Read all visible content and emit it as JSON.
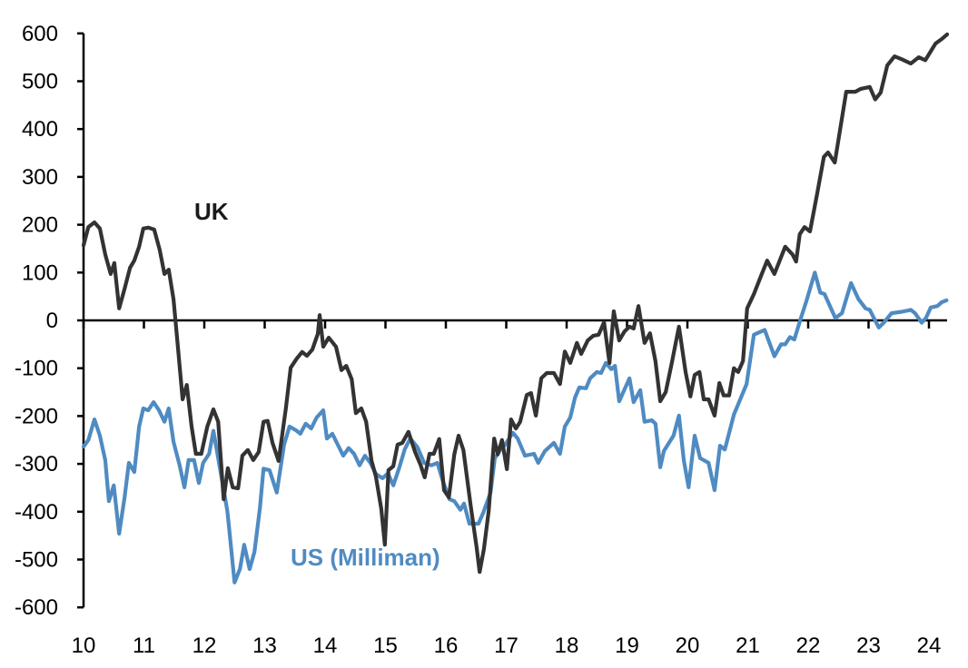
{
  "chart_data": {
    "type": "line",
    "title": "",
    "xlabel": "",
    "ylabel": "",
    "xlim": [
      10,
      24.3
    ],
    "ylim": [
      -600,
      600
    ],
    "grid": false,
    "legend": "inline labels",
    "x_ticks": [
      "10",
      "11",
      "12",
      "13",
      "14",
      "15",
      "16",
      "17",
      "18",
      "19",
      "20",
      "21",
      "22",
      "23",
      "24"
    ],
    "y_ticks": [
      "600",
      "500",
      "400",
      "300",
      "200",
      "100",
      "0",
      "-100",
      "-200",
      "-300",
      "-400",
      "-500",
      "-600"
    ],
    "zero_line": true,
    "series": [
      {
        "name": "UK",
        "color": "#333333",
        "points": [
          [
            10.0,
            157
          ],
          [
            10.08,
            195
          ],
          [
            10.18,
            205
          ],
          [
            10.27,
            192
          ],
          [
            10.36,
            138
          ],
          [
            10.45,
            97
          ],
          [
            10.51,
            120
          ],
          [
            10.59,
            25
          ],
          [
            10.68,
            66
          ],
          [
            10.77,
            110
          ],
          [
            10.84,
            125
          ],
          [
            10.92,
            154
          ],
          [
            10.99,
            192
          ],
          [
            11.07,
            194
          ],
          [
            11.17,
            190
          ],
          [
            11.26,
            148
          ],
          [
            11.34,
            97
          ],
          [
            11.41,
            106
          ],
          [
            11.49,
            44
          ],
          [
            11.56,
            -51
          ],
          [
            11.64,
            -165
          ],
          [
            11.71,
            -135
          ],
          [
            11.79,
            -222
          ],
          [
            11.86,
            -279
          ],
          [
            11.95,
            -279
          ],
          [
            12.05,
            -222
          ],
          [
            12.15,
            -186
          ],
          [
            12.23,
            -212
          ],
          [
            12.32,
            -374
          ],
          [
            12.39,
            -309
          ],
          [
            12.47,
            -349
          ],
          [
            12.56,
            -351
          ],
          [
            12.63,
            -283
          ],
          [
            12.72,
            -271
          ],
          [
            12.81,
            -292
          ],
          [
            12.9,
            -275
          ],
          [
            12.98,
            -212
          ],
          [
            13.05,
            -210
          ],
          [
            13.13,
            -256
          ],
          [
            13.23,
            -294
          ],
          [
            13.35,
            -184
          ],
          [
            13.43,
            -99
          ],
          [
            13.53,
            -80
          ],
          [
            13.62,
            -66
          ],
          [
            13.7,
            -74
          ],
          [
            13.79,
            -61
          ],
          [
            13.88,
            -28
          ],
          [
            13.91,
            11
          ],
          [
            13.97,
            -55
          ],
          [
            14.06,
            -36
          ],
          [
            14.18,
            -55
          ],
          [
            14.27,
            -104
          ],
          [
            14.35,
            -95
          ],
          [
            14.44,
            -123
          ],
          [
            14.51,
            -194
          ],
          [
            14.6,
            -184
          ],
          [
            14.68,
            -212
          ],
          [
            14.77,
            -294
          ],
          [
            14.84,
            -326
          ],
          [
            14.93,
            -393
          ],
          [
            14.99,
            -469
          ],
          [
            15.05,
            -313
          ],
          [
            15.13,
            -305
          ],
          [
            15.2,
            -260
          ],
          [
            15.28,
            -256
          ],
          [
            15.38,
            -233
          ],
          [
            15.49,
            -275
          ],
          [
            15.58,
            -302
          ],
          [
            15.65,
            -328
          ],
          [
            15.73,
            -279
          ],
          [
            15.8,
            -279
          ],
          [
            15.89,
            -248
          ],
          [
            15.97,
            -355
          ],
          [
            16.05,
            -370
          ],
          [
            16.14,
            -280
          ],
          [
            16.21,
            -241
          ],
          [
            16.29,
            -271
          ],
          [
            16.41,
            -387
          ],
          [
            16.51,
            -475
          ],
          [
            16.56,
            -526
          ],
          [
            16.63,
            -478
          ],
          [
            16.71,
            -398
          ],
          [
            16.8,
            -247
          ],
          [
            16.86,
            -280
          ],
          [
            16.93,
            -250
          ],
          [
            17.01,
            -311
          ],
          [
            17.08,
            -207
          ],
          [
            17.16,
            -226
          ],
          [
            17.23,
            -212
          ],
          [
            17.34,
            -156
          ],
          [
            17.41,
            -152
          ],
          [
            17.49,
            -199
          ],
          [
            17.58,
            -121
          ],
          [
            17.67,
            -110
          ],
          [
            17.79,
            -110
          ],
          [
            17.89,
            -133
          ],
          [
            17.97,
            -65
          ],
          [
            18.06,
            -89
          ],
          [
            18.17,
            -47
          ],
          [
            18.24,
            -70
          ],
          [
            18.35,
            -42
          ],
          [
            18.44,
            -32
          ],
          [
            18.53,
            -30
          ],
          [
            18.62,
            -4
          ],
          [
            18.71,
            -89
          ],
          [
            18.78,
            19
          ],
          [
            18.87,
            -42
          ],
          [
            18.96,
            -23
          ],
          [
            19.04,
            -13
          ],
          [
            19.11,
            -17
          ],
          [
            19.19,
            30
          ],
          [
            19.29,
            -47
          ],
          [
            19.38,
            -27
          ],
          [
            19.47,
            -85
          ],
          [
            19.55,
            -169
          ],
          [
            19.64,
            -150
          ],
          [
            19.74,
            -90
          ],
          [
            19.86,
            -13
          ],
          [
            19.97,
            -108
          ],
          [
            20.05,
            -159
          ],
          [
            20.12,
            -114
          ],
          [
            20.2,
            -108
          ],
          [
            20.27,
            -165
          ],
          [
            20.35,
            -165
          ],
          [
            20.45,
            -199
          ],
          [
            20.53,
            -131
          ],
          [
            20.6,
            -157
          ],
          [
            20.69,
            -157
          ],
          [
            20.77,
            -100
          ],
          [
            20.84,
            -108
          ],
          [
            20.92,
            -85
          ],
          [
            20.99,
            25
          ],
          [
            21.1,
            55
          ],
          [
            21.2,
            87
          ],
          [
            21.32,
            125
          ],
          [
            21.44,
            97
          ],
          [
            21.62,
            154
          ],
          [
            21.74,
            138
          ],
          [
            21.8,
            123
          ],
          [
            21.86,
            180
          ],
          [
            21.94,
            195
          ],
          [
            22.03,
            186
          ],
          [
            22.15,
            266
          ],
          [
            22.26,
            342
          ],
          [
            22.33,
            351
          ],
          [
            22.44,
            330
          ],
          [
            22.63,
            478
          ],
          [
            22.78,
            478
          ],
          [
            22.87,
            484
          ],
          [
            23.02,
            488
          ],
          [
            23.11,
            462
          ],
          [
            23.2,
            476
          ],
          [
            23.31,
            533
          ],
          [
            23.43,
            552
          ],
          [
            23.55,
            546
          ],
          [
            23.7,
            537
          ],
          [
            23.83,
            550
          ],
          [
            23.94,
            544
          ],
          [
            24.11,
            579
          ],
          [
            24.21,
            588
          ],
          [
            24.3,
            598
          ]
        ]
      },
      {
        "name": "US (Milliman)",
        "color": "#4f8bc2",
        "points": [
          [
            10.0,
            -264
          ],
          [
            10.08,
            -250
          ],
          [
            10.18,
            -207
          ],
          [
            10.27,
            -241
          ],
          [
            10.36,
            -292
          ],
          [
            10.42,
            -378
          ],
          [
            10.5,
            -345
          ],
          [
            10.59,
            -446
          ],
          [
            10.68,
            -370
          ],
          [
            10.75,
            -298
          ],
          [
            10.84,
            -317
          ],
          [
            10.92,
            -222
          ],
          [
            10.99,
            -184
          ],
          [
            11.07,
            -188
          ],
          [
            11.16,
            -171
          ],
          [
            11.25,
            -188
          ],
          [
            11.34,
            -212
          ],
          [
            11.41,
            -184
          ],
          [
            11.49,
            -254
          ],
          [
            11.59,
            -302
          ],
          [
            11.67,
            -349
          ],
          [
            11.74,
            -292
          ],
          [
            11.83,
            -292
          ],
          [
            11.91,
            -340
          ],
          [
            11.98,
            -298
          ],
          [
            12.08,
            -279
          ],
          [
            12.15,
            -231
          ],
          [
            12.23,
            -288
          ],
          [
            12.38,
            -398
          ],
          [
            12.41,
            -434
          ],
          [
            12.5,
            -548
          ],
          [
            12.59,
            -520
          ],
          [
            12.66,
            -469
          ],
          [
            12.75,
            -520
          ],
          [
            12.83,
            -484
          ],
          [
            12.92,
            -393
          ],
          [
            12.98,
            -310
          ],
          [
            13.08,
            -313
          ],
          [
            13.2,
            -360
          ],
          [
            13.32,
            -260
          ],
          [
            13.41,
            -222
          ],
          [
            13.52,
            -230
          ],
          [
            13.59,
            -237
          ],
          [
            13.68,
            -216
          ],
          [
            13.77,
            -226
          ],
          [
            13.86,
            -203
          ],
          [
            13.97,
            -188
          ],
          [
            14.03,
            -247
          ],
          [
            14.12,
            -237
          ],
          [
            14.21,
            -260
          ],
          [
            14.3,
            -283
          ],
          [
            14.39,
            -267
          ],
          [
            14.48,
            -279
          ],
          [
            14.57,
            -303
          ],
          [
            14.66,
            -283
          ],
          [
            14.75,
            -298
          ],
          [
            14.84,
            -321
          ],
          [
            14.95,
            -330
          ],
          [
            15.04,
            -320
          ],
          [
            15.13,
            -345
          ],
          [
            15.23,
            -307
          ],
          [
            15.32,
            -269
          ],
          [
            15.41,
            -247
          ],
          [
            15.53,
            -265
          ],
          [
            15.64,
            -298
          ],
          [
            15.76,
            -303
          ],
          [
            15.86,
            -298
          ],
          [
            15.95,
            -336
          ],
          [
            16.06,
            -374
          ],
          [
            16.14,
            -378
          ],
          [
            16.24,
            -396
          ],
          [
            16.3,
            -383
          ],
          [
            16.39,
            -425
          ],
          [
            16.54,
            -425
          ],
          [
            16.62,
            -402
          ],
          [
            16.74,
            -360
          ],
          [
            16.81,
            -288
          ],
          [
            16.89,
            -273
          ],
          [
            16.98,
            -260
          ],
          [
            17.11,
            -235
          ],
          [
            17.19,
            -247
          ],
          [
            17.31,
            -283
          ],
          [
            17.46,
            -279
          ],
          [
            17.53,
            -298
          ],
          [
            17.64,
            -273
          ],
          [
            17.79,
            -256
          ],
          [
            17.89,
            -279
          ],
          [
            17.97,
            -222
          ],
          [
            18.06,
            -203
          ],
          [
            18.14,
            -161
          ],
          [
            18.21,
            -140
          ],
          [
            18.32,
            -142
          ],
          [
            18.39,
            -121
          ],
          [
            18.5,
            -108
          ],
          [
            18.57,
            -110
          ],
          [
            18.65,
            -89
          ],
          [
            18.74,
            -102
          ],
          [
            18.8,
            -95
          ],
          [
            18.87,
            -169
          ],
          [
            19.04,
            -121
          ],
          [
            19.11,
            -171
          ],
          [
            19.22,
            -146
          ],
          [
            19.29,
            -212
          ],
          [
            19.41,
            -209
          ],
          [
            19.47,
            -216
          ],
          [
            19.55,
            -307
          ],
          [
            19.61,
            -273
          ],
          [
            19.77,
            -241
          ],
          [
            19.86,
            -199
          ],
          [
            19.94,
            -292
          ],
          [
            20.02,
            -349
          ],
          [
            20.12,
            -241
          ],
          [
            20.21,
            -288
          ],
          [
            20.35,
            -298
          ],
          [
            20.45,
            -355
          ],
          [
            20.54,
            -262
          ],
          [
            20.62,
            -270
          ],
          [
            20.77,
            -197
          ],
          [
            20.98,
            -133
          ],
          [
            21.1,
            -30
          ],
          [
            21.28,
            -20
          ],
          [
            21.44,
            -75
          ],
          [
            21.55,
            -50
          ],
          [
            21.62,
            -50
          ],
          [
            21.7,
            -35
          ],
          [
            21.77,
            -40
          ],
          [
            21.88,
            5
          ],
          [
            21.97,
            40
          ],
          [
            22.11,
            100
          ],
          [
            22.2,
            58
          ],
          [
            22.27,
            55
          ],
          [
            22.45,
            5
          ],
          [
            22.56,
            15
          ],
          [
            22.71,
            78
          ],
          [
            22.83,
            45
          ],
          [
            22.95,
            25
          ],
          [
            23.02,
            22
          ],
          [
            23.17,
            -15
          ],
          [
            23.25,
            -5
          ],
          [
            23.38,
            15
          ],
          [
            23.55,
            18
          ],
          [
            23.7,
            22
          ],
          [
            23.77,
            15
          ],
          [
            23.88,
            -5
          ],
          [
            23.95,
            5
          ],
          [
            24.03,
            27
          ],
          [
            24.14,
            30
          ],
          [
            24.21,
            38
          ],
          [
            24.29,
            42
          ]
        ]
      }
    ]
  },
  "labels": {
    "uk": "UK",
    "us": "US (Milliman)"
  }
}
